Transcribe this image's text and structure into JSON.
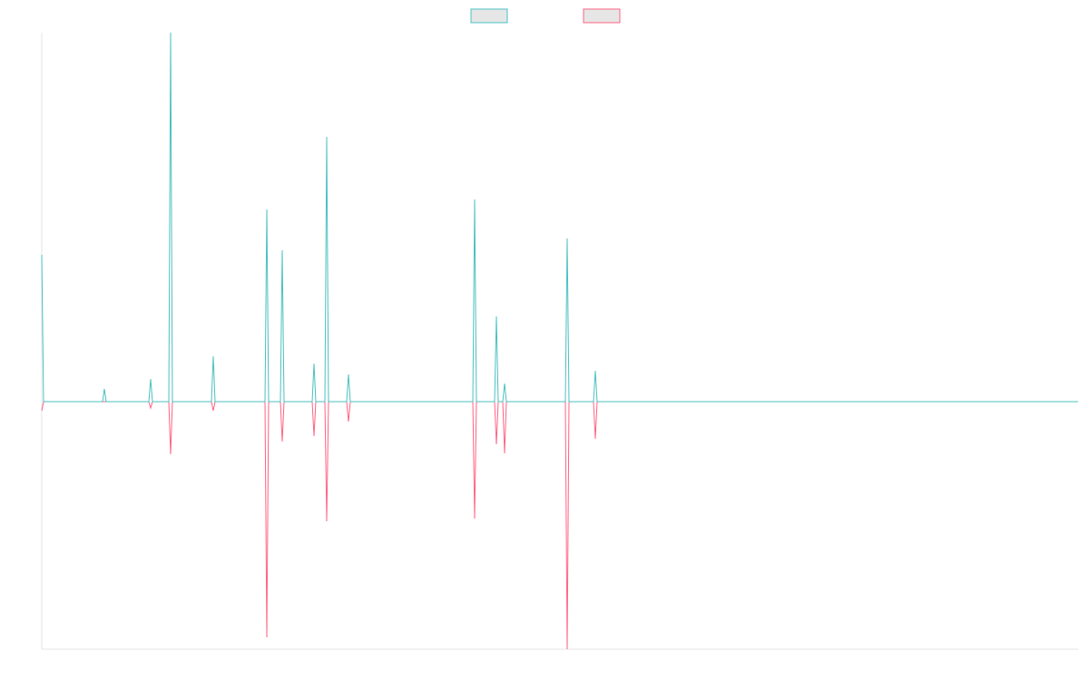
{
  "chart_data": {
    "type": "line",
    "x": [
      0,
      2,
      67,
      69,
      71,
      118,
      120,
      122,
      140,
      142,
      144,
      187,
      189,
      191,
      246,
      248,
      250,
      263,
      265,
      267,
      298,
      300,
      302,
      312,
      314,
      316,
      336,
      338,
      340,
      475,
      477,
      479,
      499,
      501,
      503,
      508,
      510,
      512,
      577,
      579,
      581,
      608,
      610,
      612,
      1142
    ],
    "xlim": [
      0,
      1142
    ],
    "ylim": [
      -273,
      407
    ],
    "legend": "top",
    "series": [
      {
        "color": "#4bc0c0",
        "values": [
          162,
          0,
          0,
          14,
          0,
          0,
          25,
          0,
          0,
          407,
          0,
          0,
          50,
          0,
          0,
          212,
          0,
          0,
          167,
          0,
          0,
          42,
          0,
          0,
          292,
          0,
          0,
          30,
          0,
          0,
          223,
          0,
          0,
          94,
          0,
          0,
          20,
          0,
          0,
          180,
          0,
          0,
          34,
          0,
          0
        ]
      },
      {
        "color": "#ff6384",
        "values": [
          -10,
          0,
          0,
          0,
          0,
          0,
          -7,
          0,
          0,
          -58,
          0,
          0,
          -10,
          0,
          0,
          -260,
          0,
          0,
          -44,
          0,
          0,
          -38,
          0,
          0,
          -132,
          0,
          0,
          -22,
          0,
          0,
          -129,
          0,
          0,
          -47,
          0,
          0,
          -57,
          0,
          0,
          -273,
          0,
          0,
          -41,
          0,
          0
        ]
      }
    ]
  }
}
